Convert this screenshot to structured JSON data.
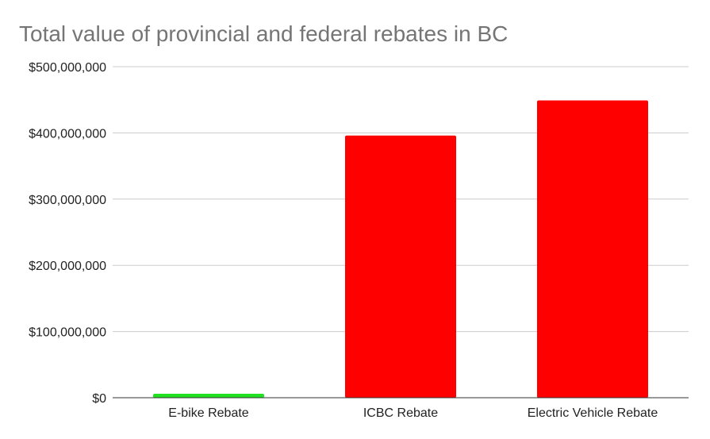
{
  "chart_data": {
    "type": "bar",
    "title": "Total value of provincial and federal rebates in BC",
    "xlabel": "",
    "ylabel": "",
    "categories": [
      "E-bike Rebate",
      "ICBC Rebate",
      "Electric Vehicle Rebate"
    ],
    "values": [
      6000000,
      396000000,
      449000000
    ],
    "colors": [
      "#22e022",
      "#ff0000",
      "#ff0000"
    ],
    "ylim": [
      0,
      500000000
    ],
    "yticks": [
      0,
      100000000,
      200000000,
      300000000,
      400000000,
      500000000
    ],
    "ytick_labels": [
      "$0",
      "$100,000,000",
      "$200,000,000",
      "$300,000,000",
      "$400,000,000",
      "$500,000,000"
    ],
    "grid": true,
    "legend": "none"
  }
}
